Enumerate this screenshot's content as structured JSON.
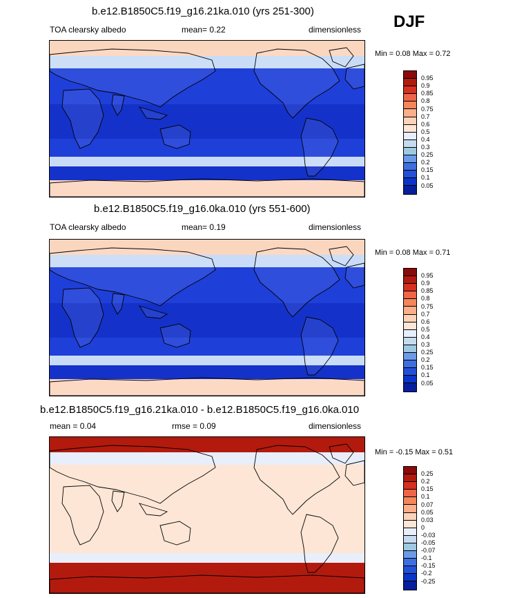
{
  "season": "DJF",
  "panels": [
    {
      "title": "b.e12.B1850C5.f19_g16.21ka.010 (yrs 251-300)",
      "variable": "TOA clearsky albedo",
      "stat1": "mean=  0.22",
      "stat2": "",
      "units": "dimensionless",
      "minmax": "Min =   0.08 Max =   0.72",
      "colorbar": {
        "levels": [
          "0.95",
          "0.9",
          "0.85",
          "0.8",
          "0.75",
          "0.7",
          "0.6",
          "0.5",
          "0.4",
          "0.3",
          "0.25",
          "0.2",
          "0.15",
          "0.1",
          "0.05"
        ],
        "colors": [
          "#8b0a0a",
          "#b31a0e",
          "#d7301f",
          "#ef6548",
          "#f4865a",
          "#fbae8a",
          "#fcd3b9",
          "#fde6d6",
          "#e8eefa",
          "#c6dbef",
          "#9ecae1",
          "#6b9ae8",
          "#3d6fe0",
          "#2350d8",
          "#0a35c8",
          "#061f9c"
        ]
      },
      "map": {
        "ocean": "#1f3fd9",
        "tropic": "#1432c9",
        "polar": "#fbd6bf",
        "midlat": "#c9dcf7"
      }
    },
    {
      "title": "b.e12.B1850C5.f19_g16.0ka.010 (yrs 551-600)",
      "variable": "TOA clearsky albedo",
      "stat1": "mean=  0.19",
      "stat2": "",
      "units": "dimensionless",
      "minmax": "Min =   0.08 Max =   0.71",
      "colorbar": {
        "levels": [
          "0.95",
          "0.9",
          "0.85",
          "0.8",
          "0.75",
          "0.7",
          "0.6",
          "0.5",
          "0.4",
          "0.3",
          "0.25",
          "0.2",
          "0.15",
          "0.1",
          "0.05"
        ],
        "colors": [
          "#8b0a0a",
          "#b31a0e",
          "#d7301f",
          "#ef6548",
          "#f4865a",
          "#fbae8a",
          "#fcd3b9",
          "#fde6d6",
          "#e8eefa",
          "#c6dbef",
          "#9ecae1",
          "#6b9ae8",
          "#3d6fe0",
          "#2350d8",
          "#0a35c8",
          "#061f9c"
        ]
      },
      "map": {
        "ocean": "#1f3fd9",
        "tropic": "#1432c9",
        "polar": "#fbd6bf",
        "midlat": "#c9dcf7"
      }
    },
    {
      "title": "b.e12.B1850C5.f19_g16.21ka.010 - b.e12.B1850C5.f19_g16.0ka.010",
      "variable": "",
      "stat1": "mean =   0.04",
      "stat2": "rmse =   0.09",
      "units": "dimensionless",
      "minmax": "Min =  -0.15 Max =   0.51",
      "colorbar": {
        "levels": [
          "0.25",
          "0.2",
          "0.15",
          "0.1",
          "0.07",
          "0.05",
          "0.03",
          "0",
          "-0.03",
          "-0.05",
          "-0.07",
          "-0.1",
          "-0.15",
          "-0.2",
          "-0.25"
        ],
        "colors": [
          "#8b0a0a",
          "#b31a0e",
          "#d7301f",
          "#ef6548",
          "#f4865a",
          "#fbae8a",
          "#fcd3b9",
          "#fde6d6",
          "#e8eefa",
          "#c6dbef",
          "#9ecae1",
          "#6b9ae8",
          "#3d6fe0",
          "#2350d8",
          "#0a35c8",
          "#061f9c"
        ]
      },
      "map": {
        "ocean": "#fde6d6",
        "tropic": "#fde6d6",
        "polar": "#b31a0e",
        "midlat": "#e8eefa"
      }
    }
  ]
}
